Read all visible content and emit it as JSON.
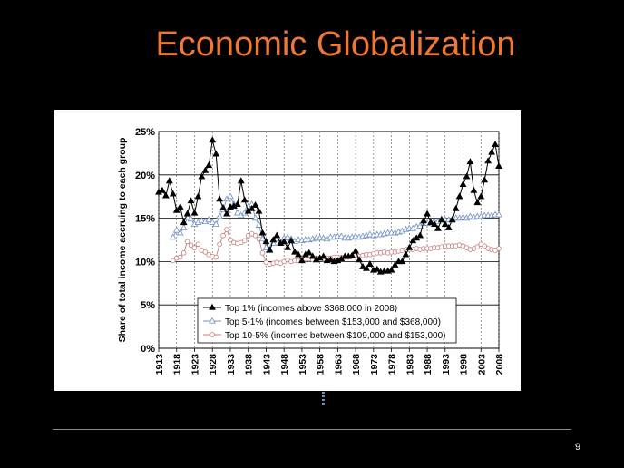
{
  "slide": {
    "title": "Economic Globalization",
    "page_number": "9",
    "title_color": "#f07832",
    "background": "#000000"
  },
  "chart_data": {
    "type": "line",
    "title": "",
    "ylabel": "Share of total income accruing to each group",
    "xlabel": "",
    "ylim": [
      0,
      25
    ],
    "xlim": [
      1913,
      2008
    ],
    "grid": true,
    "legend_position": "bottom-center",
    "x_ticks": [
      "1913",
      "1918",
      "1923",
      "1928",
      "1933",
      "1938",
      "1943",
      "1948",
      "1953",
      "1958",
      "1963",
      "1968",
      "1973",
      "1978",
      "1983",
      "1988",
      "1993",
      "1998",
      "2003",
      "2008"
    ],
    "y_ticks": [
      "0%",
      "5%",
      "10%",
      "15%",
      "20%",
      "25%"
    ],
    "series": [
      {
        "name": "Top 1% (incomes above $368,000 in 2008)",
        "color": "#000000",
        "marker": "filled-triangle",
        "x": [
          1913,
          1914,
          1915,
          1916,
          1917,
          1918,
          1919,
          1920,
          1921,
          1922,
          1923,
          1924,
          1925,
          1926,
          1927,
          1928,
          1929,
          1930,
          1931,
          1932,
          1933,
          1934,
          1935,
          1936,
          1937,
          1938,
          1939,
          1940,
          1941,
          1942,
          1943,
          1944,
          1945,
          1946,
          1947,
          1948,
          1949,
          1950,
          1951,
          1952,
          1953,
          1954,
          1955,
          1956,
          1957,
          1958,
          1959,
          1960,
          1961,
          1962,
          1963,
          1964,
          1965,
          1966,
          1967,
          1968,
          1969,
          1970,
          1971,
          1972,
          1973,
          1974,
          1975,
          1976,
          1977,
          1978,
          1979,
          1980,
          1981,
          1982,
          1983,
          1984,
          1985,
          1986,
          1987,
          1988,
          1989,
          1990,
          1991,
          1992,
          1993,
          1994,
          1995,
          1996,
          1997,
          1998,
          1999,
          2000,
          2001,
          2002,
          2003,
          2004,
          2005,
          2006,
          2007,
          2008
        ],
        "values": [
          18.0,
          18.2,
          17.6,
          19.3,
          17.8,
          15.9,
          16.3,
          14.5,
          15.5,
          17.0,
          15.6,
          17.5,
          19.8,
          20.5,
          21.1,
          24.0,
          22.4,
          17.2,
          16.2,
          15.5,
          16.3,
          16.4,
          16.6,
          19.3,
          17.1,
          15.8,
          16.1,
          16.5,
          15.8,
          13.3,
          12.3,
          11.3,
          12.5,
          13.0,
          12.1,
          12.3,
          11.6,
          12.4,
          11.1,
          10.8,
          10.1,
          10.8,
          11.0,
          10.6,
          10.2,
          10.4,
          10.6,
          10.1,
          10.2,
          10.0,
          10.1,
          10.3,
          10.6,
          10.6,
          10.7,
          11.2,
          10.2,
          9.4,
          9.2,
          9.7,
          9.0,
          9.1,
          8.8,
          8.9,
          8.9,
          9.0,
          9.6,
          10.0,
          10.0,
          10.8,
          11.6,
          12.4,
          12.7,
          13.0,
          14.7,
          15.5,
          14.5,
          14.3,
          13.8,
          14.8,
          14.3,
          13.9,
          14.8,
          16.1,
          17.5,
          18.9,
          19.8,
          21.5,
          18.2,
          16.8,
          17.5,
          19.4,
          21.6,
          22.6,
          23.5,
          21.0
        ]
      },
      {
        "name": "Top 5-1% (incomes between $153,000 and $368,000)",
        "color": "#6f8fc0",
        "marker": "open-triangle",
        "x": [
          1917,
          1918,
          1919,
          1920,
          1921,
          1922,
          1923,
          1924,
          1925,
          1926,
          1927,
          1928,
          1929,
          1930,
          1931,
          1932,
          1933,
          1934,
          1935,
          1936,
          1937,
          1938,
          1939,
          1940,
          1941,
          1942,
          1943,
          1944,
          1945,
          1946,
          1947,
          1948,
          1949,
          1950,
          1951,
          1952,
          1953,
          1954,
          1955,
          1956,
          1957,
          1958,
          1959,
          1960,
          1961,
          1962,
          1963,
          1964,
          1965,
          1966,
          1967,
          1968,
          1969,
          1970,
          1971,
          1972,
          1973,
          1974,
          1975,
          1976,
          1977,
          1978,
          1979,
          1980,
          1981,
          1982,
          1983,
          1984,
          1985,
          1986,
          1987,
          1988,
          1989,
          1990,
          1991,
          1992,
          1993,
          1994,
          1995,
          1996,
          1997,
          1998,
          1999,
          2000,
          2001,
          2002,
          2003,
          2004,
          2005,
          2006,
          2007,
          2008
        ],
        "values": [
          12.8,
          13.6,
          13.3,
          13.9,
          15.1,
          14.9,
          14.3,
          14.5,
          14.7,
          14.6,
          14.8,
          14.5,
          14.3,
          15.2,
          16.0,
          17.2,
          17.5,
          16.6,
          15.6,
          15.3,
          15.6,
          16.3,
          16.6,
          15.0,
          14.2,
          12.6,
          11.6,
          11.4,
          12.1,
          12.6,
          12.2,
          12.7,
          12.8,
          12.6,
          12.3,
          12.5,
          12.4,
          12.5,
          12.5,
          12.6,
          12.7,
          12.7,
          12.7,
          12.6,
          12.8,
          12.8,
          12.9,
          12.9,
          12.7,
          12.7,
          12.8,
          12.9,
          12.8,
          12.9,
          13.0,
          13.1,
          13.0,
          13.1,
          13.1,
          13.2,
          13.3,
          13.3,
          13.3,
          13.4,
          13.5,
          13.7,
          13.8,
          13.8,
          14.0,
          14.1,
          14.4,
          14.4,
          14.5,
          14.6,
          14.6,
          14.9,
          14.8,
          14.8,
          14.9,
          15.0,
          15.0,
          15.1,
          15.0,
          15.2,
          15.1,
          15.2,
          15.2,
          15.3,
          15.3,
          15.3,
          15.4,
          15.4
        ]
      },
      {
        "name": "Top 10-5% (incomes between $109,000 and $153,000)",
        "color": "#c47b78",
        "marker": "open-circle",
        "x": [
          1917,
          1918,
          1919,
          1920,
          1921,
          1922,
          1923,
          1924,
          1925,
          1926,
          1927,
          1928,
          1929,
          1930,
          1931,
          1932,
          1933,
          1934,
          1935,
          1936,
          1937,
          1938,
          1939,
          1940,
          1941,
          1942,
          1943,
          1944,
          1945,
          1946,
          1947,
          1948,
          1949,
          1950,
          1951,
          1952,
          1953,
          1954,
          1955,
          1956,
          1957,
          1958,
          1959,
          1960,
          1961,
          1962,
          1963,
          1964,
          1965,
          1966,
          1967,
          1968,
          1969,
          1970,
          1971,
          1972,
          1973,
          1974,
          1975,
          1976,
          1977,
          1978,
          1979,
          1980,
          1981,
          1982,
          1983,
          1984,
          1985,
          1986,
          1987,
          1988,
          1989,
          1990,
          1991,
          1992,
          1993,
          1994,
          1995,
          1996,
          1997,
          1998,
          1999,
          2000,
          2001,
          2002,
          2003,
          2004,
          2005,
          2006,
          2007,
          2008
        ],
        "values": [
          10.1,
          10.4,
          10.5,
          11.0,
          12.3,
          11.9,
          11.6,
          12.0,
          11.3,
          11.1,
          10.8,
          10.6,
          10.5,
          12.0,
          13.0,
          13.7,
          12.5,
          12.2,
          12.1,
          12.2,
          12.4,
          13.0,
          13.2,
          13.0,
          12.6,
          11.0,
          9.9,
          9.7,
          9.8,
          9.9,
          9.8,
          10.0,
          10.2,
          10.0,
          10.1,
          10.1,
          10.2,
          10.3,
          10.3,
          10.2,
          10.4,
          10.4,
          10.3,
          10.4,
          10.4,
          10.5,
          10.5,
          10.5,
          10.5,
          10.5,
          10.6,
          10.7,
          10.6,
          10.7,
          10.8,
          10.8,
          10.9,
          11.0,
          11.0,
          11.1,
          11.0,
          11.1,
          11.1,
          11.2,
          11.3,
          11.4,
          11.4,
          11.4,
          11.5,
          11.4,
          11.5,
          11.5,
          11.5,
          11.6,
          11.6,
          11.7,
          11.8,
          11.8,
          11.8,
          11.8,
          11.9,
          11.8,
          11.6,
          11.4,
          11.5,
          11.7,
          12.0,
          11.8,
          11.5,
          11.4,
          11.3,
          11.5
        ]
      }
    ]
  }
}
